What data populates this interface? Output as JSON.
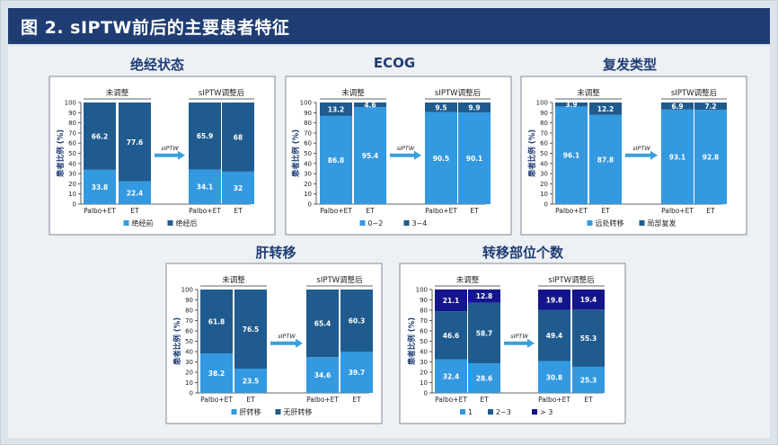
{
  "header": {
    "title": "图 2. sIPTW前后的主要患者特征"
  },
  "labels": {
    "unadjusted": "未调整",
    "adjusted": "sIPTW调整后",
    "arrow": "sIPTW",
    "ylabel": "患者比例 (%)"
  },
  "colors": {
    "header_bg": "#1f3d73",
    "dark": "#1f5b8e",
    "light": "#3399e0",
    "navy": "#14148c",
    "arrow": "#3aa0dc",
    "title": "#1f3d73"
  },
  "chart_data": [
    {
      "type": "bar",
      "stacked": true,
      "title": "绝经状态",
      "categories": [
        "Palbo+ET",
        "ET",
        "Palbo+ET",
        "ET"
      ],
      "series": [
        {
          "name": "绝经前",
          "color": "#3399e0",
          "values": [
            33.8,
            22.4,
            34.1,
            32
          ]
        },
        {
          "name": "绝经后",
          "color": "#1f5b8e",
          "values": [
            66.2,
            77.6,
            65.9,
            68
          ]
        }
      ],
      "ylabel": "患者比例 (%)",
      "ylim": [
        0,
        100
      ],
      "yticks": [
        0,
        10,
        20,
        30,
        40,
        50,
        60,
        70,
        80,
        90,
        100
      ],
      "legend": "bottom"
    },
    {
      "type": "bar",
      "stacked": true,
      "title": "ECOG",
      "categories": [
        "Palbo+ET",
        "ET",
        "Palbo+ET",
        "ET"
      ],
      "series": [
        {
          "name": "0~2",
          "color": "#3399e0",
          "values": [
            86.8,
            95.4,
            90.5,
            90.1
          ]
        },
        {
          "name": "3~4",
          "color": "#1f5b8e",
          "values": [
            13.2,
            4.6,
            9.5,
            9.9
          ]
        }
      ],
      "ylabel": "患者比例 (%)",
      "ylim": [
        0,
        100
      ],
      "yticks": [
        0,
        10,
        20,
        30,
        40,
        50,
        60,
        70,
        80,
        90,
        100
      ],
      "legend": "bottom"
    },
    {
      "type": "bar",
      "stacked": true,
      "title": "复发类型",
      "categories": [
        "Palbo+ET",
        "ET",
        "Palbo+ET",
        "ET"
      ],
      "series": [
        {
          "name": "远处转移",
          "color": "#3399e0",
          "values": [
            96.1,
            87.8,
            93.1,
            92.8
          ]
        },
        {
          "name": "局部复发",
          "color": "#1f5b8e",
          "values": [
            3.9,
            12.2,
            6.9,
            7.2
          ]
        }
      ],
      "ylabel": "患者比例 (%)",
      "ylim": [
        0,
        100
      ],
      "yticks": [
        0,
        10,
        20,
        30,
        40,
        50,
        60,
        70,
        80,
        90,
        100
      ],
      "legend": "bottom"
    },
    {
      "type": "bar",
      "stacked": true,
      "title": "肝转移",
      "categories": [
        "Palbo+ET",
        "ET",
        "Palbo+ET",
        "ET"
      ],
      "series": [
        {
          "name": "肝转移",
          "color": "#3399e0",
          "values": [
            38.2,
            23.5,
            34.6,
            39.7
          ]
        },
        {
          "name": "无肝转移",
          "color": "#1f5b8e",
          "values": [
            61.8,
            76.5,
            65.4,
            60.3
          ]
        }
      ],
      "ylabel": "患者比例 (%)",
      "ylim": [
        0,
        100
      ],
      "yticks": [
        0,
        10,
        20,
        30,
        40,
        50,
        60,
        70,
        80,
        90,
        100
      ],
      "legend": "bottom"
    },
    {
      "type": "bar",
      "stacked": true,
      "title": "转移部位个数",
      "categories": [
        "Palbo+ET",
        "ET",
        "Palbo+ET",
        "ET"
      ],
      "series": [
        {
          "name": "1",
          "color": "#3399e0",
          "values": [
            32.4,
            28.6,
            30.8,
            25.3
          ]
        },
        {
          "name": "2~3",
          "color": "#1f5b8e",
          "values": [
            46.6,
            58.7,
            49.4,
            55.3
          ]
        },
        {
          "name": "> 3",
          "color": "#14148c",
          "values": [
            21.1,
            12.8,
            19.8,
            19.4
          ]
        }
      ],
      "ylabel": "患者比例 (%)",
      "ylim": [
        0,
        100
      ],
      "yticks": [
        0,
        10,
        20,
        30,
        40,
        50,
        60,
        70,
        80,
        90,
        100
      ],
      "legend": "bottom"
    }
  ]
}
